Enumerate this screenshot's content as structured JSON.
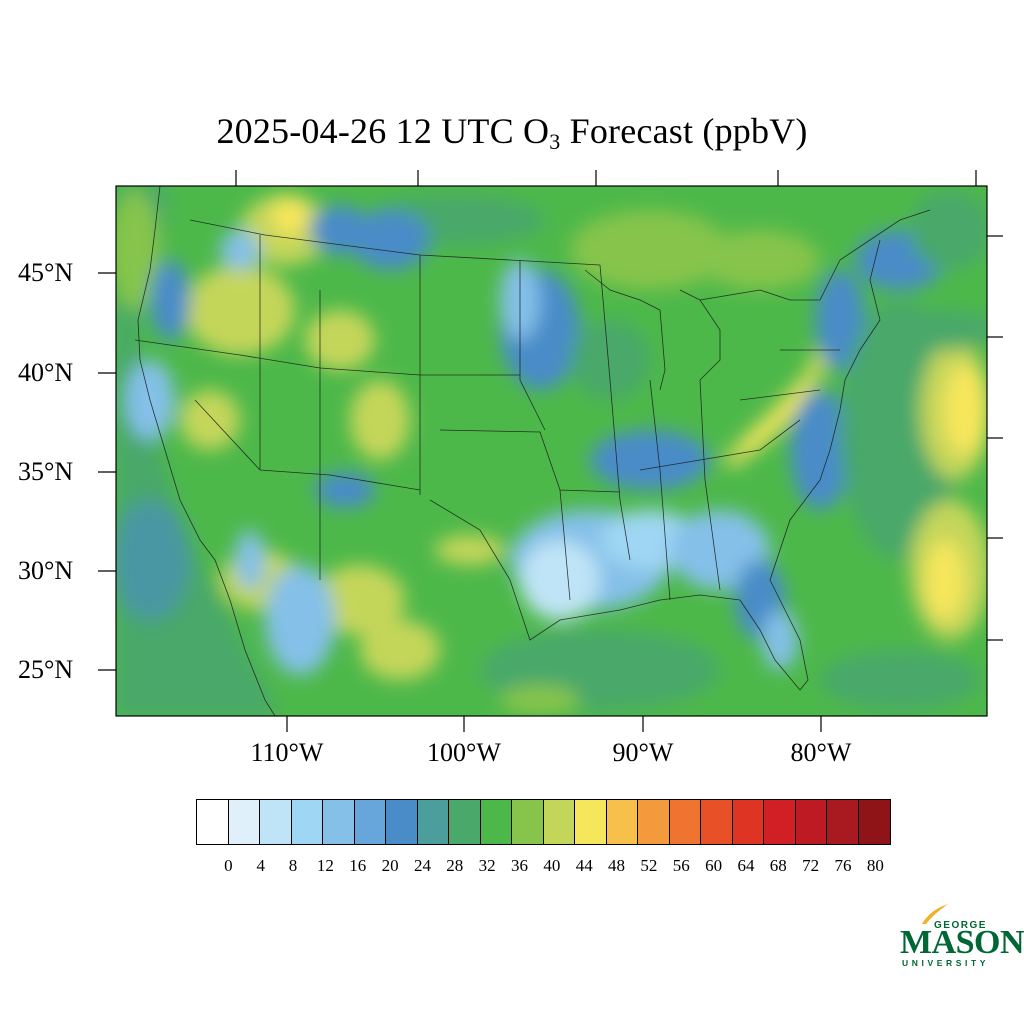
{
  "title": {
    "prefix": "2025-04-26 12 UTC O",
    "subscript": "3",
    "suffix": " Forecast (ppbV)"
  },
  "latitude_labels": [
    "45°N",
    "40°N",
    "35°N",
    "30°N",
    "25°N"
  ],
  "longitude_labels": [
    "110°W",
    "100°W",
    "90°W",
    "80°W"
  ],
  "colorbar": {
    "colors": [
      "#ffffff",
      "#dff0fa",
      "#bfe4f7",
      "#9fd6f3",
      "#84c0e8",
      "#66a6da",
      "#4a8cc8",
      "#4c9e9c",
      "#4aa86a",
      "#4db84a",
      "#86c44c",
      "#c4d65a",
      "#f6e65c",
      "#f6c04a",
      "#f39a3c",
      "#ef7430",
      "#e85028",
      "#de3424",
      "#d11f26",
      "#bd1a24",
      "#a81a20",
      "#8e1418"
    ],
    "labels": [
      "0",
      "4",
      "8",
      "12",
      "16",
      "20",
      "24",
      "28",
      "32",
      "36",
      "40",
      "44",
      "48",
      "52",
      "56",
      "60",
      "64",
      "68",
      "72",
      "76",
      "80"
    ]
  },
  "logo": {
    "line1": "GEORGE",
    "line2": "MASON",
    "line3": "UNIVERSITY"
  }
}
